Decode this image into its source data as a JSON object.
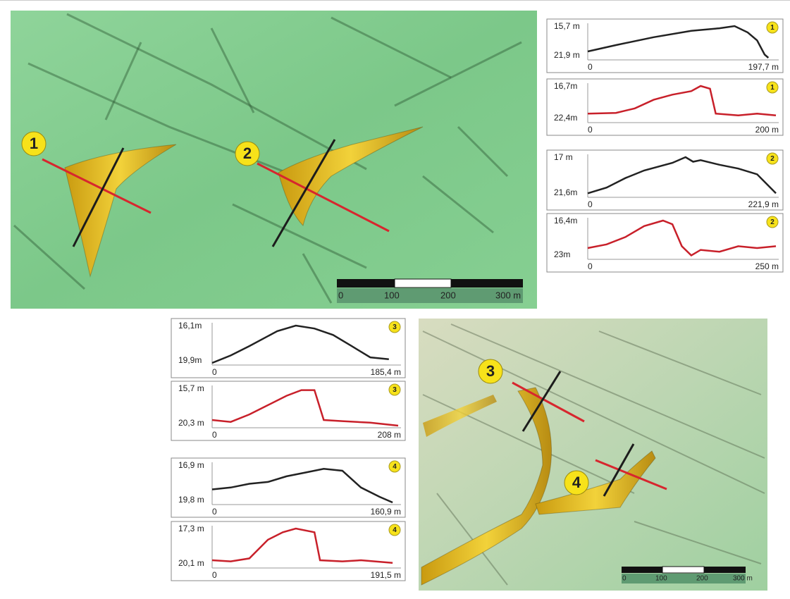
{
  "map_top": {
    "markers": [
      "1",
      "2"
    ],
    "scale": [
      "0",
      "100",
      "200",
      "300 m"
    ]
  },
  "map_bottom": {
    "markers": [
      "3",
      "4"
    ],
    "scale": [
      "0",
      "100",
      "200",
      "300 m"
    ]
  },
  "profiles": [
    {
      "top": "15,7 m",
      "bottom": "21,9 m",
      "start": "0",
      "end": "197,7 m",
      "badge": "1"
    },
    {
      "top": "16,7m",
      "bottom": "22,4m",
      "start": "0",
      "end": "200 m",
      "badge": "1"
    },
    {
      "top": "17 m",
      "bottom": "21,6m",
      "start": "0",
      "end": "221,9 m",
      "badge": "2"
    },
    {
      "top": "16,4m",
      "bottom": "23m",
      "start": "0",
      "end": "250 m",
      "badge": "2"
    },
    {
      "top": "16,1m",
      "bottom": "19,9m",
      "start": "0",
      "end": "185,4 m",
      "badge": "3"
    },
    {
      "top": "15,7 m",
      "bottom": "20,3 m",
      "start": "0",
      "end": "208 m",
      "badge": "3"
    },
    {
      "top": "16,9 m",
      "bottom": "19,8 m",
      "start": "0",
      "end": "160,9 m",
      "badge": "4"
    },
    {
      "top": "17,3 m",
      "bottom": "20,1 m",
      "start": "0",
      "end": "191,5 m",
      "badge": "4"
    }
  ]
}
